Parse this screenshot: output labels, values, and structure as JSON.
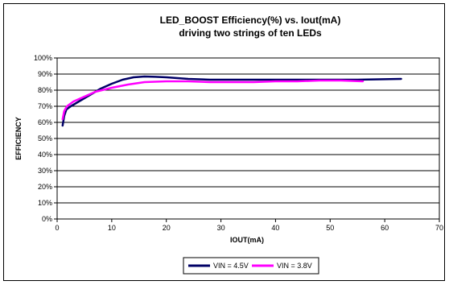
{
  "chart_data": {
    "type": "line",
    "title": "LED_BOOST Efficiency(%) vs. Iout(mA)",
    "subtitle": "driving two strings of ten LEDs",
    "xlabel": "IOUT(mA)",
    "ylabel": "EFFICIENCY",
    "xlim": [
      0,
      70
    ],
    "ylim": [
      0,
      100
    ],
    "x_ticks": [
      "0",
      "10",
      "20",
      "30",
      "40",
      "50",
      "60",
      "70"
    ],
    "y_ticks": [
      "0%",
      "10%",
      "20%",
      "30%",
      "40%",
      "50%",
      "60%",
      "70%",
      "80%",
      "90%",
      "100%"
    ],
    "grid": true,
    "legend_position": "bottom",
    "series": [
      {
        "name": "VIN = 4.5V",
        "color": "#000066",
        "points": [
          [
            1,
            58
          ],
          [
            1.3,
            64
          ],
          [
            1.7,
            68
          ],
          [
            2.5,
            70
          ],
          [
            4,
            73
          ],
          [
            6,
            77
          ],
          [
            8,
            81
          ],
          [
            10,
            84
          ],
          [
            12,
            86.5
          ],
          [
            14,
            88
          ],
          [
            16,
            88.5
          ],
          [
            18,
            88.3
          ],
          [
            20,
            88
          ],
          [
            24,
            87
          ],
          [
            28,
            86.5
          ],
          [
            32,
            86.5
          ],
          [
            40,
            86.5
          ],
          [
            48,
            86.5
          ],
          [
            55,
            86.5
          ],
          [
            58,
            86.7
          ],
          [
            63,
            87
          ]
        ]
      },
      {
        "name": "VIN = 3.8V",
        "color": "#ff00ff",
        "points": [
          [
            1,
            62
          ],
          [
            1.3,
            67
          ],
          [
            1.8,
            70
          ],
          [
            3,
            73
          ],
          [
            5,
            76
          ],
          [
            7,
            79
          ],
          [
            10,
            81.5
          ],
          [
            13,
            83.5
          ],
          [
            16,
            85
          ],
          [
            20,
            85.5
          ],
          [
            24,
            85.5
          ],
          [
            28,
            85
          ],
          [
            32,
            85
          ],
          [
            36,
            85
          ],
          [
            40,
            85.5
          ],
          [
            44,
            85.5
          ],
          [
            48,
            86
          ],
          [
            52,
            86
          ],
          [
            56,
            85.5
          ]
        ]
      }
    ]
  }
}
